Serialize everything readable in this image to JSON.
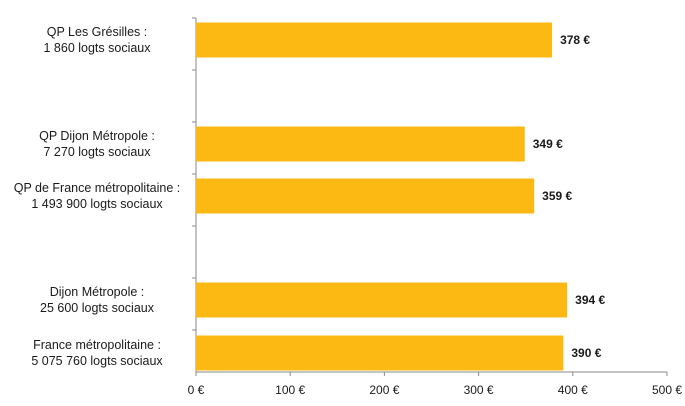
{
  "chart_data": {
    "type": "bar",
    "orientation": "horizontal",
    "title": "",
    "xlabel": "",
    "ylabel": "",
    "xlim": [
      0,
      500
    ],
    "grid": false,
    "legend": "none",
    "bar_color": "#FDB913",
    "categories": [
      {
        "line1": "QP Les Grésilles :",
        "line2": "1 860 logts sociaux"
      },
      {
        "line1": "QP Dijon Métropole :",
        "line2": "7 270 logts sociaux"
      },
      {
        "line1": "QP de France métropolitaine :",
        "line2": "1 493 900 logts sociaux"
      },
      {
        "line1": "Dijon Métropole :",
        "line2": "25 600 logts sociaux"
      },
      {
        "line1": "France métropolitaine :",
        "line2": "5 075 760 logts sociaux"
      }
    ],
    "values": [
      378,
      349,
      359,
      394,
      390
    ],
    "value_labels": [
      "378 €",
      "349 €",
      "359 €",
      "394 €",
      "390 €"
    ],
    "ticks": [
      0,
      100,
      200,
      300,
      400,
      500
    ],
    "tick_labels": [
      "0 €",
      "100 €",
      "200 €",
      "300 €",
      "400 €",
      "500 €"
    ]
  }
}
